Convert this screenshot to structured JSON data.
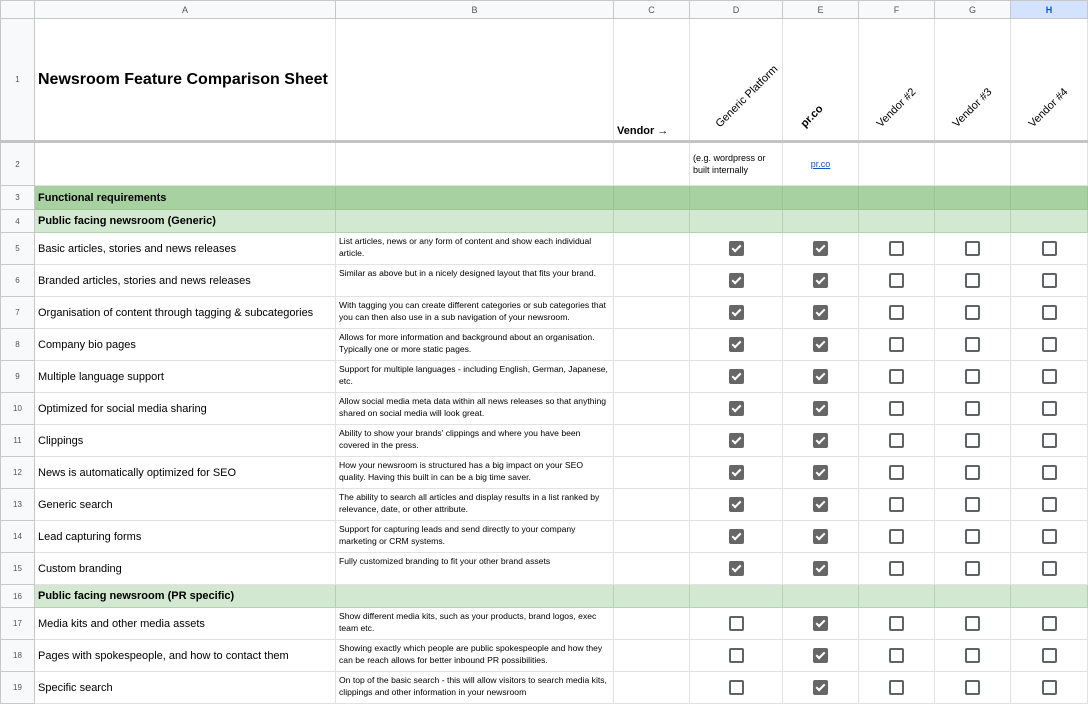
{
  "columns": [
    "A",
    "B",
    "C",
    "D",
    "E",
    "F",
    "G",
    "H"
  ],
  "selected_column": "H",
  "title": "Newsroom Feature Comparison Sheet",
  "vendor_label": "Vendor →",
  "vendors": [
    "Generic Platform",
    "pr.co",
    "Vendor #2",
    "Vendor #3",
    "Vendor #4"
  ],
  "vendor_notes": {
    "generic": "(e.g. wordpress or built internally",
    "prco_link": "pr.co"
  },
  "colors": {
    "section": "#a8d1a1",
    "subsection": "#d2e8d0",
    "checked": "#666666",
    "selected_header": "#d3e3fd"
  },
  "rows": [
    {
      "n": "3",
      "type": "section",
      "label": "Functional requirements"
    },
    {
      "n": "4",
      "type": "subsection",
      "label": "Public facing newsroom (Generic)"
    },
    {
      "n": "5",
      "type": "feature",
      "label": "Basic articles, stories and news releases",
      "desc": "List articles, news or any form of content and show each individual article.",
      "checks": [
        true,
        true,
        false,
        false,
        false
      ]
    },
    {
      "n": "6",
      "type": "feature",
      "label": "Branded articles, stories and news releases",
      "desc": "Similar as above but in a nicely designed layout that fits your brand.",
      "checks": [
        true,
        true,
        false,
        false,
        false
      ]
    },
    {
      "n": "7",
      "type": "feature",
      "label": "Organisation of content through tagging & subcategories",
      "desc": "With tagging you can create different categories or sub categories that you can then also use in a sub navigation of your newsroom.",
      "checks": [
        true,
        true,
        false,
        false,
        false
      ]
    },
    {
      "n": "8",
      "type": "feature",
      "label": "Company bio pages",
      "desc": "Allows for more information and background about an organisation. Typically one or more static pages.",
      "checks": [
        true,
        true,
        false,
        false,
        false
      ]
    },
    {
      "n": "9",
      "type": "feature",
      "label": "Multiple language support",
      "desc": "Support for multiple languages - including English, German, Japanese, etc.",
      "checks": [
        true,
        true,
        false,
        false,
        false
      ]
    },
    {
      "n": "10",
      "type": "feature",
      "label": "Optimized for social media sharing",
      "desc": "Allow social media meta data within all news releases so that anything shared on social media will look great.",
      "checks": [
        true,
        true,
        false,
        false,
        false
      ]
    },
    {
      "n": "11",
      "type": "feature",
      "label": "Clippings",
      "desc": "Ability to show your brands' clippings and where you have been covered in the press.",
      "checks": [
        true,
        true,
        false,
        false,
        false
      ]
    },
    {
      "n": "12",
      "type": "feature",
      "label": "News is automatically optimized for SEO",
      "desc": "How your newsroom is structured has a big impact on your SEO quality. Having this built in can be a big time saver.",
      "checks": [
        true,
        true,
        false,
        false,
        false
      ]
    },
    {
      "n": "13",
      "type": "feature",
      "label": "Generic search",
      "desc": "The ability to search all articles and display results in a list ranked by relevance, date, or other attribute.",
      "checks": [
        true,
        true,
        false,
        false,
        false
      ]
    },
    {
      "n": "14",
      "type": "feature",
      "label": "Lead capturing forms",
      "desc": "Support for capturing leads and send directly to your company marketing or CRM systems.",
      "checks": [
        true,
        true,
        false,
        false,
        false
      ]
    },
    {
      "n": "15",
      "type": "feature",
      "label": "Custom branding",
      "desc": "Fully customized branding to fit your other brand assets",
      "checks": [
        true,
        true,
        false,
        false,
        false
      ]
    },
    {
      "n": "16",
      "type": "subsection",
      "label": "Public facing newsroom (PR specific)"
    },
    {
      "n": "17",
      "type": "feature",
      "label": "Media kits and other media assets",
      "desc": "Show different media kits, such as your products, brand logos, exec team etc.",
      "checks": [
        false,
        true,
        false,
        false,
        false
      ]
    },
    {
      "n": "18",
      "type": "feature",
      "label": "Pages with spokespeople, and how to contact them",
      "desc": "Showing exactly which people are public spokespeople and how they can be reach allows for better inbound PR possibilities.",
      "checks": [
        false,
        true,
        false,
        false,
        false
      ]
    },
    {
      "n": "19",
      "type": "feature",
      "label": "Specific search",
      "desc": "On top of the basic search - this will allow visitors to search media kits, clippings and other information in your newsroom",
      "checks": [
        false,
        true,
        false,
        false,
        false
      ]
    }
  ]
}
